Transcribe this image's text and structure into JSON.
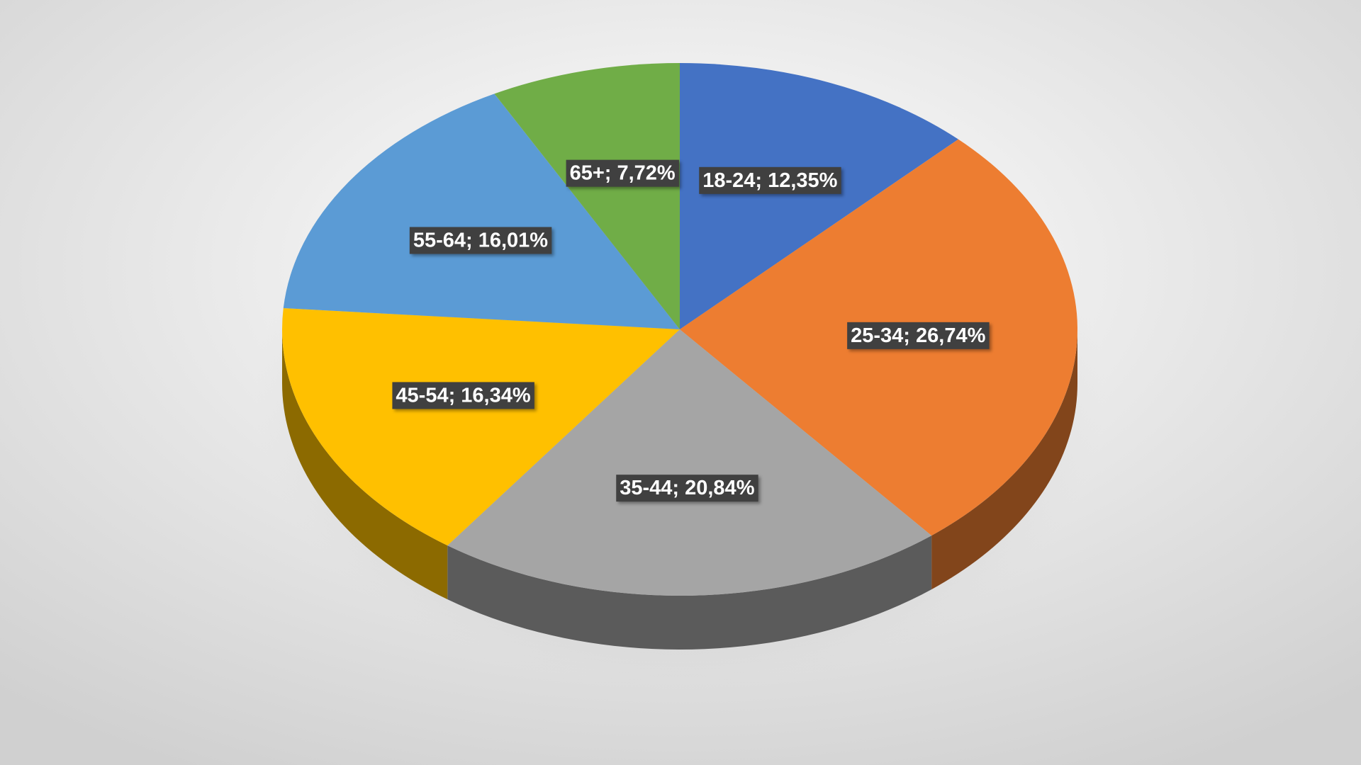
{
  "chart_data": {
    "type": "pie",
    "start_angle": 0,
    "direction": "clockwise",
    "3d": true,
    "values": [
      12.35,
      26.74,
      20.84,
      16.34,
      16.01,
      7.72
    ],
    "value_labels": [
      "18-24; 12,35%",
      "25-34; 26,74%",
      "35-44; 20,84%",
      "45-54; 16,34%",
      "55-64; 16,01%",
      "65+; 7,72%"
    ],
    "colors": [
      "#4472c4",
      "#ed7d31",
      "#a5a5a5",
      "#ffc000",
      "#5b9bd5",
      "#70ad47"
    ]
  }
}
